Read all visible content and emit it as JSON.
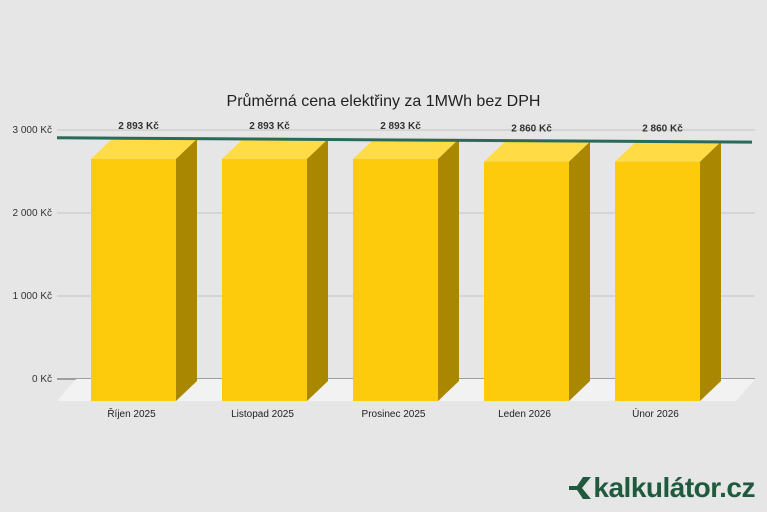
{
  "chart_data": {
    "type": "bar",
    "title": "Průměrná cena elektřiny za 1MWh bez DPH",
    "categories": [
      "Říjen 2025",
      "Listopad 2025",
      "Prosinec 2025",
      "Leden 2026",
      "Únor 2026"
    ],
    "values": [
      2893,
      2893,
      2893,
      2860,
      2860
    ],
    "value_labels": [
      "2 893 Kč",
      "2 893 Kč",
      "2 893 Kč",
      "2 860 Kč",
      "2 860 Kč"
    ],
    "y_ticks": [
      0,
      1000,
      2000,
      3000
    ],
    "y_tick_labels": [
      "0 Kč",
      "1 000 Kč",
      "2 000 Kč",
      "3 000 Kč"
    ],
    "ylim": [
      0,
      3000
    ],
    "grid": true,
    "trendline": true,
    "colors": {
      "bar_front": "#fdcb0b",
      "bar_top": "#ffdb46",
      "bar_side": "#a98700",
      "trend": "#2a6a5b",
      "floor": "#f2f2f2"
    }
  },
  "brand": {
    "text": "kalkulátor.cz",
    "icon": "kalkulator-logo-icon"
  }
}
